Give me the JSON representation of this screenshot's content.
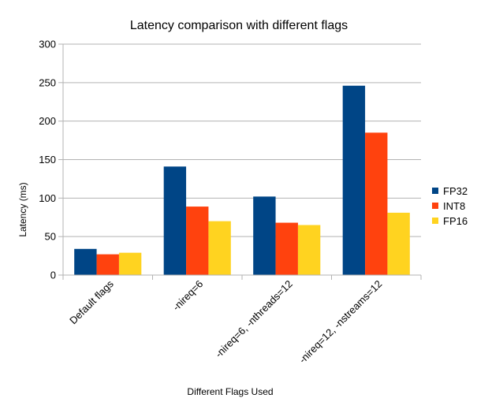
{
  "chart_data": {
    "type": "bar",
    "title": "Latency comparison with different flags",
    "xlabel": "Different Flags Used",
    "ylabel": "Latency (ms)",
    "ylim": [
      0,
      300
    ],
    "yticks": [
      0,
      50,
      100,
      150,
      200,
      250,
      300
    ],
    "grid": true,
    "legend_position": "right",
    "categories": [
      "Default flags",
      "-nireq=6",
      "-nireq=6, -nthreads=12",
      "-nireq=12, -nstreams=12"
    ],
    "series": [
      {
        "name": "FP32",
        "color": "#004586",
        "values": [
          34,
          141,
          102,
          246
        ]
      },
      {
        "name": "INT8",
        "color": "#ff420e",
        "values": [
          27,
          89,
          68,
          185
        ]
      },
      {
        "name": "FP16",
        "color": "#ffd320",
        "values": [
          29,
          70,
          65,
          81
        ]
      }
    ]
  }
}
